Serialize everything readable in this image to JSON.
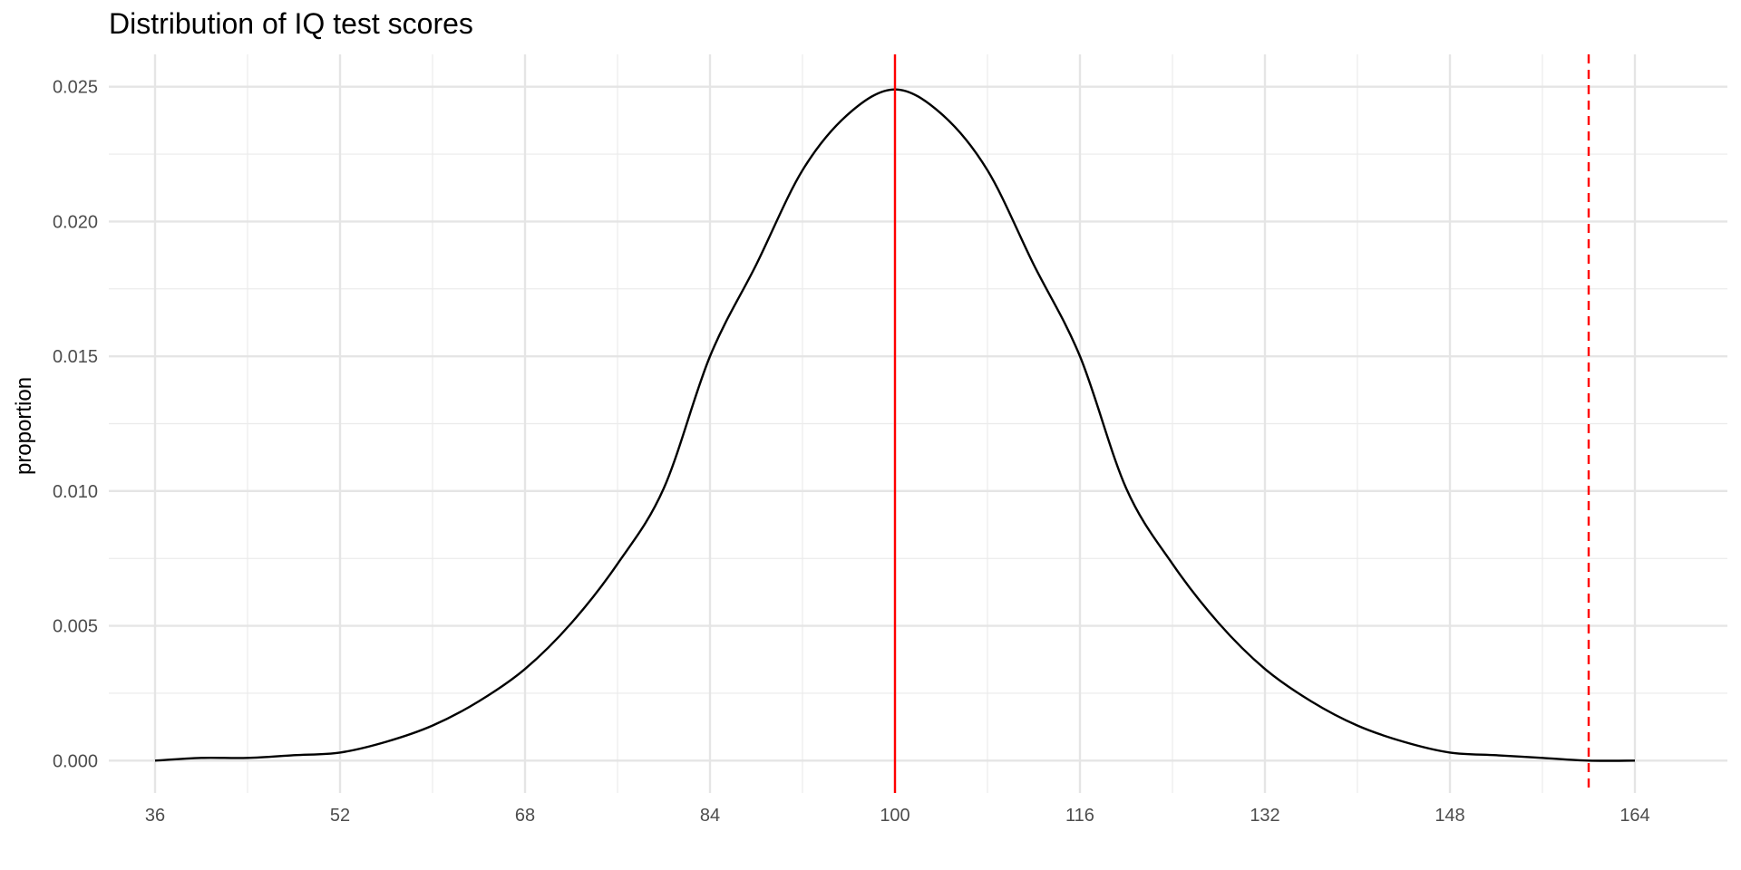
{
  "chart_data": {
    "type": "line",
    "title": "Distribution of IQ test scores",
    "xlabel": "",
    "ylabel": "proportion",
    "xlim": [
      32,
      172
    ],
    "ylim": [
      -0.0012,
      0.0262
    ],
    "x_ticks": [
      36,
      52,
      68,
      84,
      100,
      116,
      132,
      148,
      164
    ],
    "x_tick_labels": [
      "36",
      "52",
      "68",
      "84",
      "100",
      "116",
      "132",
      "148",
      "164"
    ],
    "y_ticks": [
      0.0,
      0.005,
      0.01,
      0.015,
      0.02,
      0.025
    ],
    "y_tick_labels": [
      "0.000",
      "0.005",
      "0.010",
      "0.015",
      "0.020",
      "0.025"
    ],
    "grid": true,
    "legend": "none",
    "series": [
      {
        "style": "black-solid",
        "color": "#000000",
        "x": [
          36,
          40,
          44,
          48,
          52,
          56,
          60,
          64,
          68,
          72,
          76,
          80,
          84,
          88,
          92,
          96,
          100,
          104,
          108,
          112,
          116,
          120,
          124,
          128,
          132,
          136,
          140,
          144,
          148,
          152,
          156,
          160,
          164
        ],
        "y": [
          0.0,
          0.0001,
          0.0001,
          0.0002,
          0.0003,
          0.0007,
          0.0013,
          0.0022,
          0.0034,
          0.0051,
          0.0073,
          0.0101,
          0.015,
          0.0184,
          0.0219,
          0.024,
          0.0249,
          0.024,
          0.0219,
          0.0184,
          0.015,
          0.0101,
          0.0073,
          0.0051,
          0.0034,
          0.0022,
          0.0013,
          0.0007,
          0.0003,
          0.0002,
          0.0001,
          0.0,
          0.0
        ]
      }
    ],
    "vlines": [
      {
        "x": 100,
        "style": "solid",
        "color": "#ff0000"
      },
      {
        "x": 160,
        "style": "dashed",
        "color": "#ff0000"
      }
    ]
  }
}
